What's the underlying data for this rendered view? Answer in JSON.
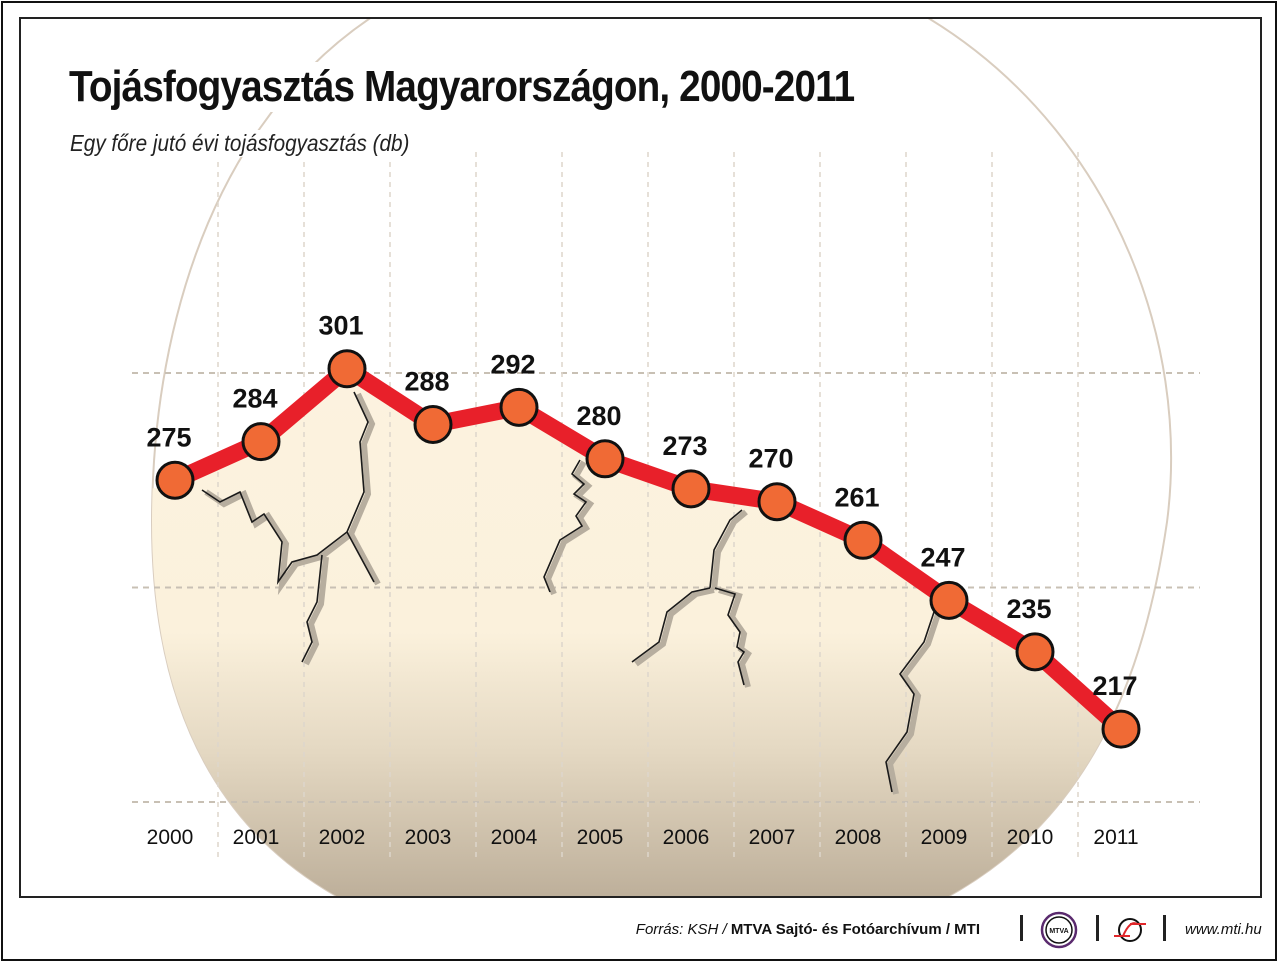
{
  "header": {
    "title": "Tojásfogyasztás Magyarországon, 2000-2011",
    "subtitle": "Egy főre jutó évi tojásfogyasztás (db)"
  },
  "footer": {
    "source_prefix": "Forrás: KSH / ",
    "source_bold": "MTVA Sajtó- és Fotóarchívum / MTI",
    "mtva_logo_text": "MTVA",
    "url": "www.mti.hu"
  },
  "colors": {
    "line": "#e8202a",
    "marker_fill": "#f06a35",
    "marker_stroke": "#111111",
    "egg_top": "#fcf3e0",
    "egg_bottom": "#bcae99",
    "grid": "#c8c0b4",
    "mtva_ring": "#5a2a6e",
    "mti_red": "#e0262a"
  },
  "chart_data": {
    "type": "line",
    "title": "Tojásfogyasztás Magyarországon, 2000-2011",
    "subtitle": "Egy főre jutó évi tojásfogyasztás (db)",
    "xlabel": "",
    "ylabel": "db",
    "categories": [
      "2000",
      "2001",
      "2002",
      "2003",
      "2004",
      "2005",
      "2006",
      "2007",
      "2008",
      "2009",
      "2010",
      "2011"
    ],
    "series": [
      {
        "name": "Egy főre jutó évi tojásfogyasztás",
        "values": [
          275,
          284,
          301,
          288,
          292,
          280,
          273,
          270,
          261,
          247,
          235,
          217
        ]
      }
    ],
    "data_labels": [
      "275",
      "284",
      "301",
      "288",
      "292",
      "280",
      "273",
      "270",
      "261",
      "247",
      "235",
      "217"
    ],
    "ylim": [
      200,
      300
    ],
    "gridlines_y": [
      200,
      250,
      300
    ],
    "grid": true,
    "legend": "none"
  }
}
